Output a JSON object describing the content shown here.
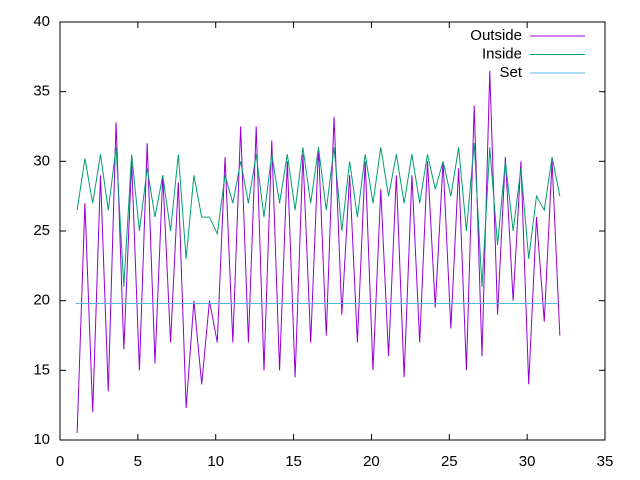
{
  "chart_data": {
    "type": "line",
    "xlim": [
      0,
      35
    ],
    "xticks": [
      0,
      5,
      10,
      15,
      20,
      25,
      30,
      35
    ],
    "ylim": [
      10,
      40
    ],
    "yticks": [
      10,
      15,
      20,
      25,
      30,
      35,
      40
    ],
    "grid": false,
    "legend": "top-right",
    "series": [
      {
        "name": "Outside",
        "color": "#9400d3",
        "x": [
          1.1,
          1.6,
          2.1,
          2.6,
          3.1,
          3.6,
          4.1,
          4.6,
          5.1,
          5.6,
          6.1,
          6.6,
          7.1,
          7.6,
          8.1,
          8.6,
          9.1,
          9.6,
          10.1,
          10.6,
          11.1,
          11.6,
          12.1,
          12.6,
          13.1,
          13.6,
          14.1,
          14.6,
          15.1,
          15.6,
          16.1,
          16.6,
          17.1,
          17.6,
          18.1,
          18.6,
          19.1,
          19.6,
          20.1,
          20.6,
          21.1,
          21.6,
          22.1,
          22.6,
          23.1,
          23.6,
          24.1,
          24.6,
          25.1,
          25.6,
          26.1,
          26.6,
          27.1,
          27.6,
          28.1,
          28.6,
          29.1,
          29.6,
          30.1,
          30.6,
          31.1,
          31.6,
          32.1
        ],
        "values": [
          10.5,
          27,
          12,
          29,
          13.5,
          32.8,
          16.5,
          30,
          15,
          31.3,
          15.5,
          29,
          17,
          28.5,
          12.3,
          20,
          14,
          20,
          17,
          30.3,
          17,
          32.5,
          17,
          32.5,
          15,
          31.5,
          15,
          30,
          14.5,
          30.5,
          17,
          31,
          17.5,
          33.2,
          19,
          29,
          17,
          30,
          15,
          28,
          16,
          29,
          14.5,
          29,
          17,
          30,
          19.5,
          30,
          18,
          29.5,
          15,
          34,
          16,
          36.5,
          19,
          30.3,
          20,
          30,
          14,
          26,
          18.5,
          30,
          17.5
        ]
      },
      {
        "name": "Inside",
        "color": "#009e73",
        "x": [
          1.1,
          1.6,
          2.1,
          2.6,
          3.1,
          3.6,
          4.1,
          4.6,
          5.1,
          5.6,
          6.1,
          6.6,
          7.1,
          7.6,
          8.1,
          8.6,
          9.1,
          9.6,
          10.1,
          10.6,
          11.1,
          11.6,
          12.1,
          12.6,
          13.1,
          13.6,
          14.1,
          14.6,
          15.1,
          15.6,
          16.1,
          16.6,
          17.1,
          17.6,
          18.1,
          18.6,
          19.1,
          19.6,
          20.1,
          20.6,
          21.1,
          21.6,
          22.1,
          22.6,
          23.1,
          23.6,
          24.1,
          24.6,
          25.1,
          25.6,
          26.1,
          26.6,
          27.1,
          27.6,
          28.1,
          28.6,
          29.1,
          29.6,
          30.1,
          30.6,
          31.1,
          31.6,
          32.1
        ],
        "values": [
          26.5,
          30.2,
          27,
          30.5,
          26.5,
          31,
          21,
          30.5,
          25,
          29.5,
          26,
          29,
          25,
          30.5,
          23,
          29,
          26,
          26,
          24.8,
          29,
          27,
          30,
          27,
          30.5,
          26,
          30.5,
          27,
          30.5,
          26.5,
          31,
          27,
          31,
          26.5,
          31,
          25,
          30,
          26,
          30.5,
          27,
          31,
          27.5,
          30.5,
          27,
          30.5,
          27,
          30.5,
          28,
          30,
          27.5,
          31,
          25,
          31.3,
          21,
          31,
          24,
          30,
          25,
          29.5,
          23,
          27.5,
          26.5,
          30.3,
          27.5
        ]
      },
      {
        "name": "Set",
        "color": "#56b4e9",
        "x": [
          1,
          32
        ],
        "values": [
          19.8,
          19.8
        ]
      }
    ]
  }
}
